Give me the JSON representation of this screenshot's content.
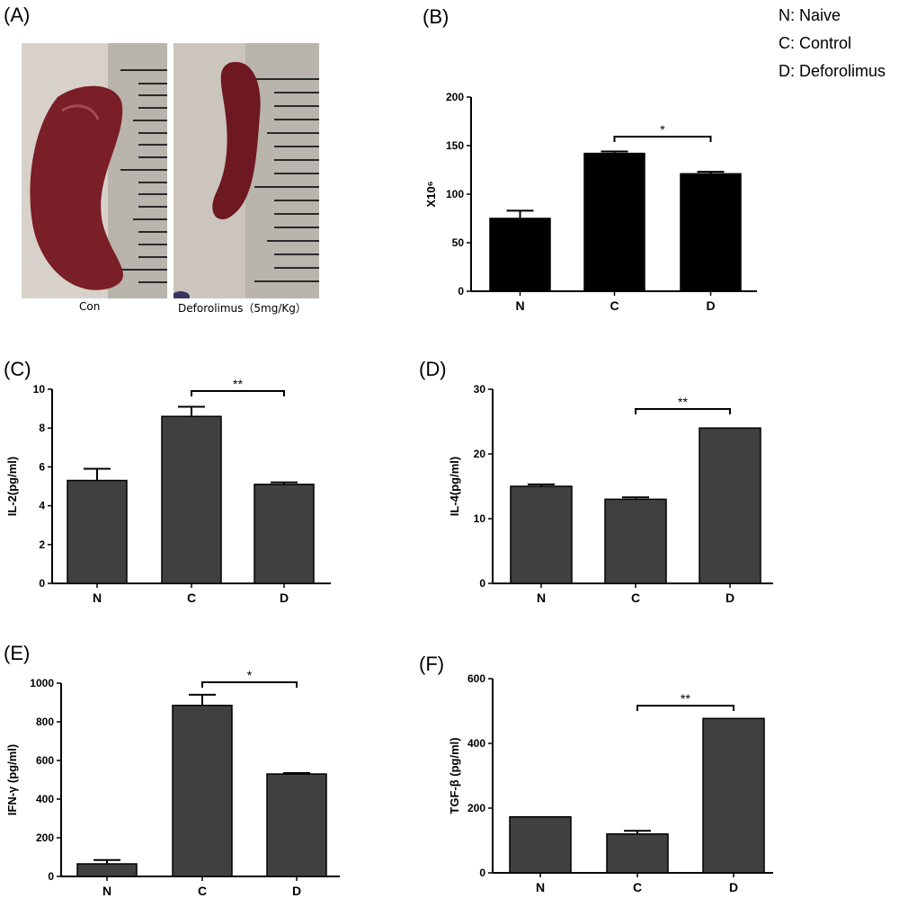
{
  "panel_labels": {
    "a": "(A)",
    "b": "(B)",
    "c": "(C)",
    "d": "(D)",
    "e": "(E)",
    "f": "(F)"
  },
  "legend": {
    "n": "N: Naive",
    "c": "C: Control",
    "d": "D: Deforolimus"
  },
  "photos": {
    "left_caption": "Con",
    "right_caption": "Deforolimus（5mg/Kg）"
  },
  "colors": {
    "bar_b": "#000000",
    "bar_default": "#404040",
    "photo_bg": "#c9c3ba",
    "spleen": "#7a1e28"
  },
  "chart_data": [
    {
      "id": "B",
      "type": "bar",
      "categories": [
        "N",
        "C",
        "D"
      ],
      "values": [
        75,
        142,
        121
      ],
      "errors": [
        8,
        2,
        2
      ],
      "ylabel": "X10⁶",
      "ylim": [
        0,
        200
      ],
      "yticks": [
        0,
        50,
        100,
        150,
        200
      ],
      "annotation": {
        "text": "*",
        "from": "C",
        "to": "D"
      }
    },
    {
      "id": "C",
      "type": "bar",
      "categories": [
        "N",
        "C",
        "D"
      ],
      "values": [
        5.3,
        8.6,
        5.1
      ],
      "errors": [
        0.6,
        0.5,
        0.1
      ],
      "ylabel": "IL-2(pg/ml)",
      "ylim": [
        0,
        10
      ],
      "yticks": [
        0,
        2,
        4,
        6,
        8,
        10
      ],
      "annotation": {
        "text": "**",
        "from": "C",
        "to": "D"
      }
    },
    {
      "id": "D",
      "type": "bar",
      "categories": [
        "N",
        "C",
        "D"
      ],
      "values": [
        15,
        13,
        24
      ],
      "errors": [
        0.3,
        0.3,
        0
      ],
      "ylabel": "IL-4(pg/ml)",
      "ylim": [
        0,
        30
      ],
      "yticks": [
        0,
        10,
        20,
        30
      ],
      "annotation": {
        "text": "**",
        "from": "C",
        "to": "D"
      }
    },
    {
      "id": "E",
      "type": "bar",
      "categories": [
        "N",
        "C",
        "D"
      ],
      "values": [
        65,
        885,
        530
      ],
      "errors": [
        20,
        55,
        5
      ],
      "ylabel": "IFN-γ (pg/ml)",
      "ylim": [
        0,
        1000
      ],
      "yticks": [
        0,
        200,
        400,
        600,
        800,
        1000
      ],
      "annotation": {
        "text": "*",
        "from": "C",
        "to": "D"
      }
    },
    {
      "id": "F",
      "type": "bar",
      "categories": [
        "N",
        "C",
        "D"
      ],
      "values": [
        173,
        120,
        477
      ],
      "errors": [
        0,
        10,
        0
      ],
      "ylabel": "TGF-β (pg/ml)",
      "ylim": [
        0,
        600
      ],
      "yticks": [
        0,
        200,
        400,
        600
      ],
      "annotation": {
        "text": "**",
        "from": "C",
        "to": "D"
      }
    }
  ]
}
